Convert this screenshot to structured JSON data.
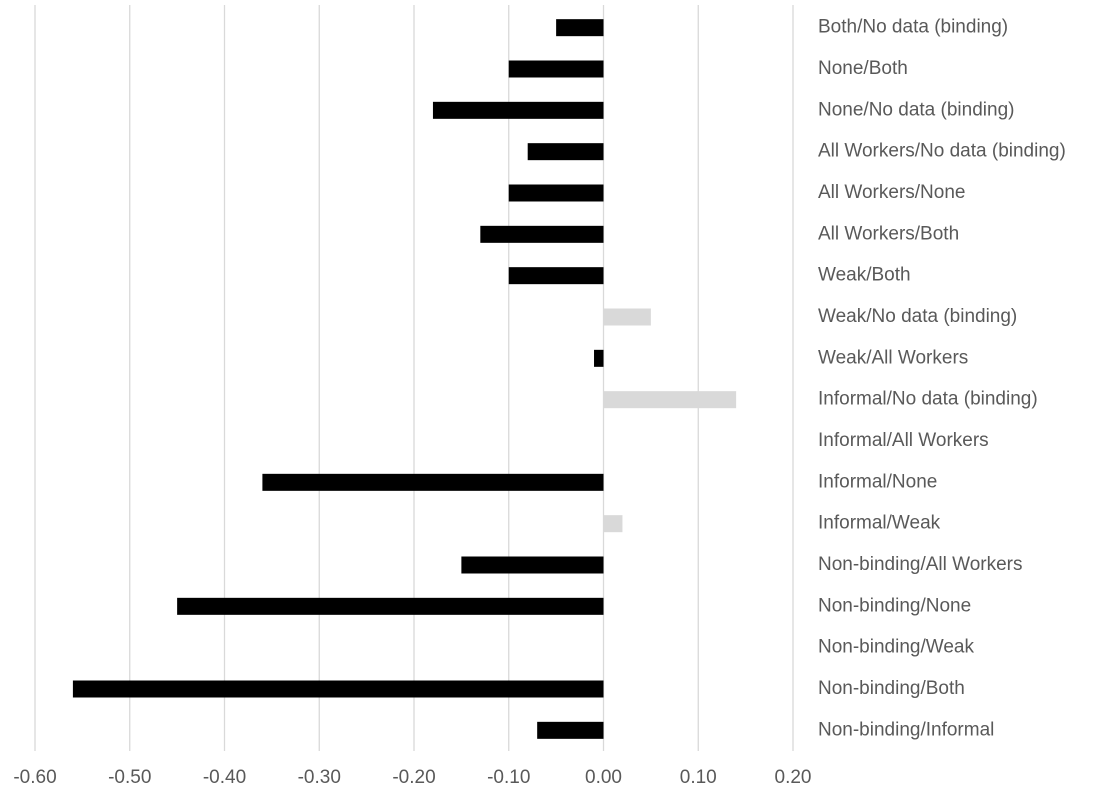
{
  "chart_data": {
    "type": "bar",
    "orientation": "horizontal",
    "categories": [
      "Both/No data (binding)",
      "None/Both",
      "None/No data (binding)",
      "All Workers/No data (binding)",
      "All Workers/None",
      "All Workers/Both",
      "Weak/Both",
      "Weak/No data (binding)",
      "Weak/All Workers",
      "Informal/No data (binding)",
      "Informal/All Workers",
      "Informal/None",
      "Informal/Weak",
      "Non-binding/All Workers",
      "Non-binding/None",
      "Non-binding/Weak",
      "Non-binding/Both",
      "Non-binding/Informal"
    ],
    "values": [
      -0.05,
      -0.1,
      -0.18,
      -0.08,
      -0.1,
      -0.13,
      -0.1,
      0.05,
      -0.01,
      0.14,
      0,
      -0.36,
      0.02,
      -0.15,
      -0.45,
      0,
      -0.56,
      -0.07
    ],
    "colors": [
      "#000000",
      "#000000",
      "#000000",
      "#000000",
      "#000000",
      "#000000",
      "#000000",
      "#d9d9d9",
      "#000000",
      "#d9d9d9",
      "#000000",
      "#000000",
      "#d9d9d9",
      "#000000",
      "#000000",
      "#000000",
      "#000000",
      "#000000"
    ],
    "xlim": [
      -0.6,
      0.2
    ],
    "xticks": [
      {
        "value": -0.6,
        "label": "-0.60"
      },
      {
        "value": -0.5,
        "label": "-0.50"
      },
      {
        "value": -0.4,
        "label": "-0.40"
      },
      {
        "value": -0.3,
        "label": "-0.30"
      },
      {
        "value": -0.2,
        "label": "-0.20"
      },
      {
        "value": -0.1,
        "label": "-0.10"
      },
      {
        "value": 0,
        "label": "0.00"
      },
      {
        "value": 0.1,
        "label": "0.10"
      },
      {
        "value": 0.2,
        "label": "0.20"
      }
    ],
    "grid": true
  }
}
